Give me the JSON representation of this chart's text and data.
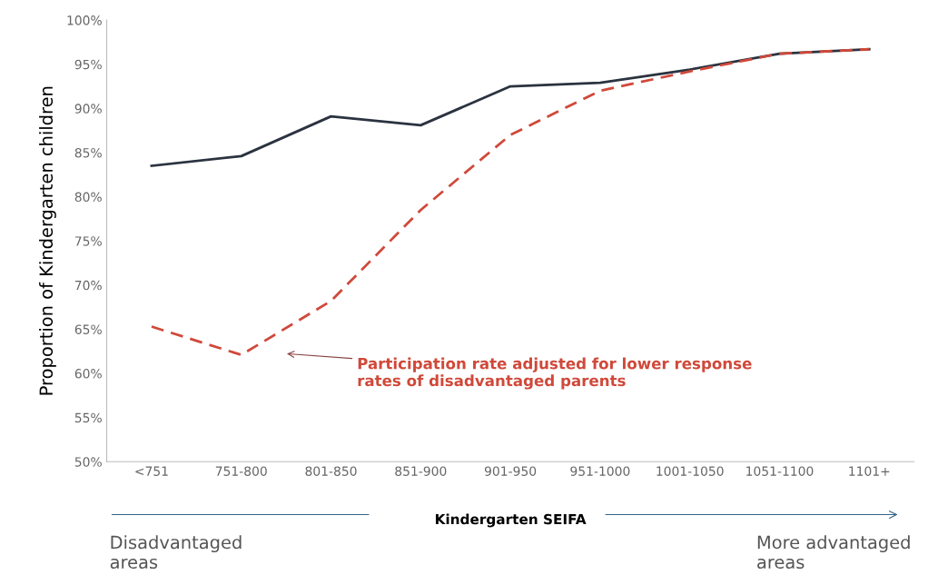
{
  "chart_data": {
    "type": "line",
    "xlabel": "Kindergarten SEIFA",
    "ylabel": "Proportion of Kindergarten children",
    "categories": [
      "<751",
      "751-800",
      "801-850",
      "851-900",
      "901-950",
      "951-1000",
      "1001-1050",
      "1051-1100",
      "1101+"
    ],
    "series": [
      {
        "color": "#2b3340",
        "line_style": "solid",
        "values": [
          83.5,
          84.6,
          89.1,
          88.1,
          92.5,
          92.9,
          94.4,
          96.2,
          96.7
        ]
      },
      {
        "color": "#d0493a",
        "line_style": "dashed",
        "values": [
          65.3,
          62.1,
          68.2,
          78.5,
          87.0,
          92.0,
          94.2,
          96.2,
          96.7
        ]
      }
    ],
    "ylim": [
      50,
      100
    ],
    "yticks": [
      {
        "value": 50,
        "label": "50%"
      },
      {
        "value": 55,
        "label": "55%"
      },
      {
        "value": 60,
        "label": "60%"
      },
      {
        "value": 65,
        "label": "65%"
      },
      {
        "value": 70,
        "label": "70%"
      },
      {
        "value": 75,
        "label": "75%"
      },
      {
        "value": 80,
        "label": "80%"
      },
      {
        "value": 85,
        "label": "85%"
      },
      {
        "value": 90,
        "label": "90%"
      },
      {
        "value": 95,
        "label": "95%"
      },
      {
        "value": 100,
        "label": "100%"
      }
    ],
    "grid": false,
    "legend": false,
    "marker": "none",
    "annotations": [
      "Participation rate adjusted for lower response\nrates of disadvantaged parents",
      "Disadvantaged areas",
      "More advantaged areas"
    ]
  }
}
